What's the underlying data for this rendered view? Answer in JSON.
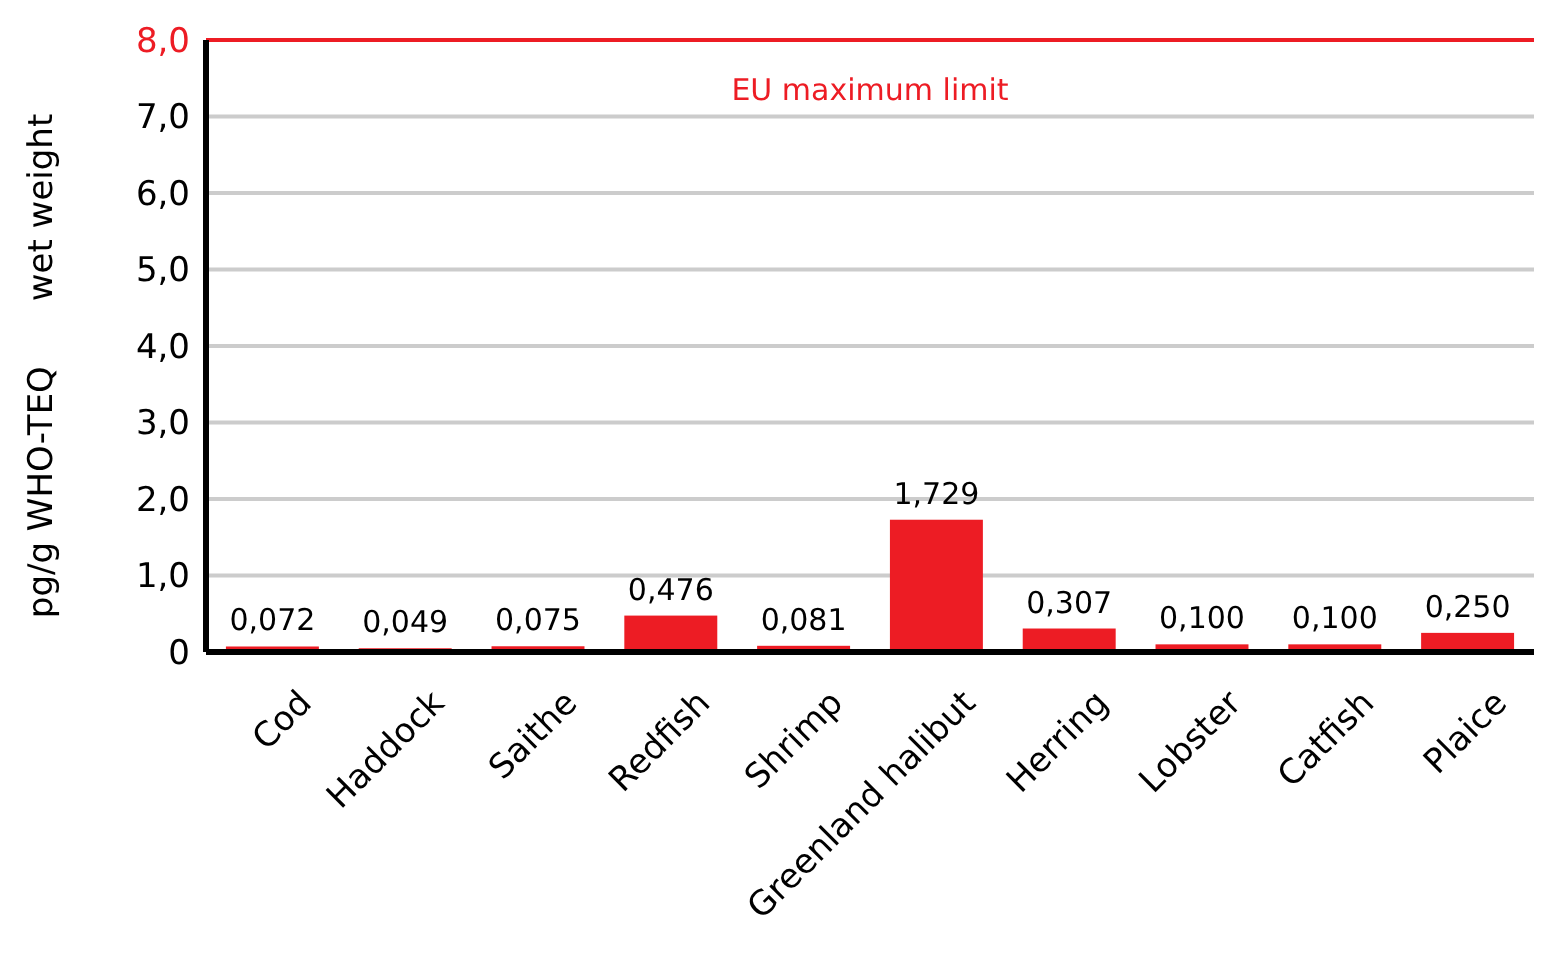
{
  "chart_data": {
    "type": "bar",
    "ylabel": "pg/g WHO-TEQ      wet weight",
    "categories": [
      "Cod",
      "Haddock",
      "Saithe",
      "Redfish",
      "Shrimp",
      "Greenland halibut",
      "Herring",
      "Lobster",
      "Catfish",
      "Plaice"
    ],
    "values": [
      0.072,
      0.049,
      0.075,
      0.476,
      0.081,
      1.729,
      0.307,
      0.1,
      0.1,
      0.25
    ],
    "value_labels": [
      "0,072",
      "0,049",
      "0,075",
      "0,476",
      "0,081",
      "1,729",
      "0,307",
      "0,100",
      "0,100",
      "0,250"
    ],
    "color": "#ed1c24",
    "ylim": [
      0,
      8
    ],
    "yticks": [
      0,
      {
        "value": 1,
        "label": "1,0"
      },
      {
        "value": 2,
        "label": "2,0"
      },
      {
        "value": 3,
        "label": "3,0"
      },
      {
        "value": 4,
        "label": "4,0"
      },
      {
        "value": 5,
        "label": "5,0"
      },
      {
        "value": 6,
        "label": "6,0"
      },
      {
        "value": 7,
        "label": "7,0"
      },
      {
        "value": 8,
        "label": "8,0"
      }
    ],
    "grid": "y",
    "ref_lines": [
      {
        "axis": "y",
        "value": 8,
        "label": "EU maximum limit",
        "color": "#ed1c24"
      }
    ]
  }
}
